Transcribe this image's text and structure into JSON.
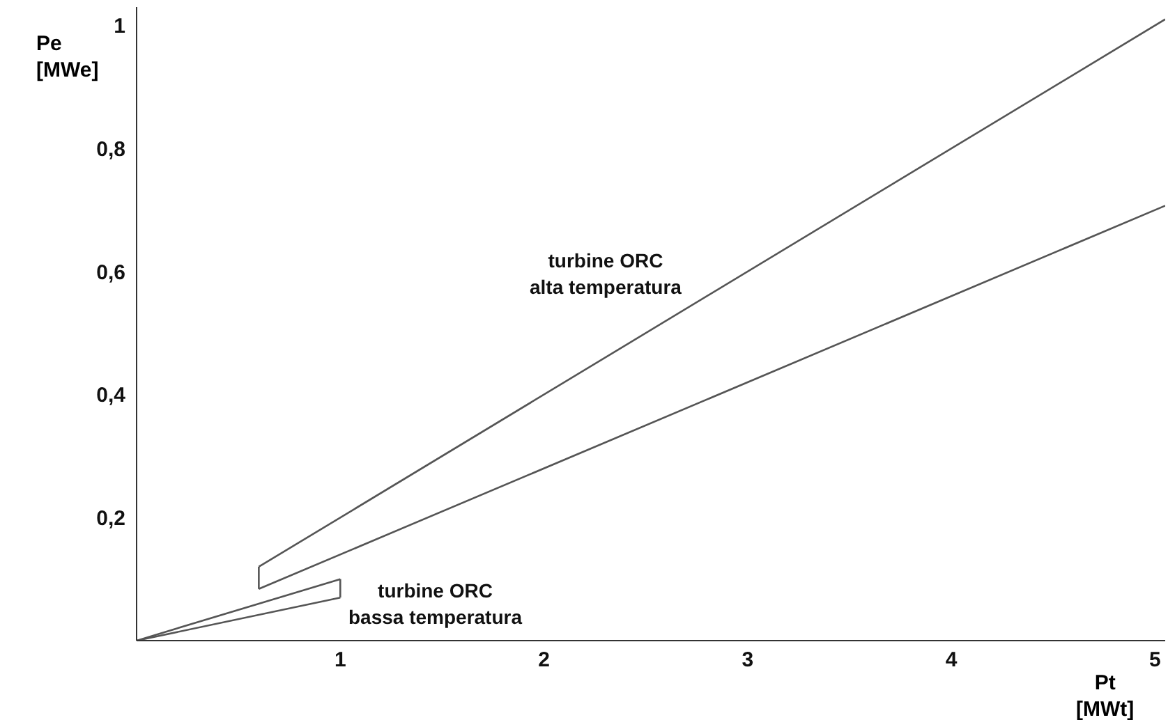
{
  "chart_data": {
    "type": "line",
    "xlabel": "Pt\n[MWt]",
    "ylabel": "Pe\n[MWe]",
    "xlim": [
      0,
      5.05
    ],
    "ylim": [
      0,
      1.03
    ],
    "xticks": [
      1,
      2,
      3,
      4,
      5
    ],
    "yticks": [
      {
        "value": 0.2,
        "label": "0,2"
      },
      {
        "value": 0.4,
        "label": "0,4"
      },
      {
        "value": 0.6,
        "label": "0,6"
      },
      {
        "value": 0.8,
        "label": "0,8"
      },
      {
        "value": 1,
        "label": "1"
      }
    ],
    "grid": false,
    "marker": "none",
    "line_style": "solid",
    "series": [
      {
        "color": "#555555",
        "x": [
          0.6,
          5.05
        ],
        "values": [
          0.12,
          1.01
        ]
      },
      {
        "color": "#555555",
        "x": [
          0.6,
          5.05
        ],
        "values": [
          0.084,
          0.707
        ]
      },
      {
        "color": "#555555",
        "x": [
          0.6,
          0.6
        ],
        "values": [
          0.084,
          0.12
        ]
      },
      {
        "color": "#555555",
        "x": [
          0,
          1
        ],
        "values": [
          0,
          0.1
        ]
      },
      {
        "color": "#555555",
        "x": [
          0,
          1
        ],
        "values": [
          0,
          0.07
        ]
      },
      {
        "color": "#555555",
        "x": [
          1,
          1
        ],
        "values": [
          0.07,
          0.1
        ]
      }
    ],
    "annotations": [
      "turbine ORC\nalta temperatura",
      "turbine ORC\nbassa temperatura"
    ]
  }
}
